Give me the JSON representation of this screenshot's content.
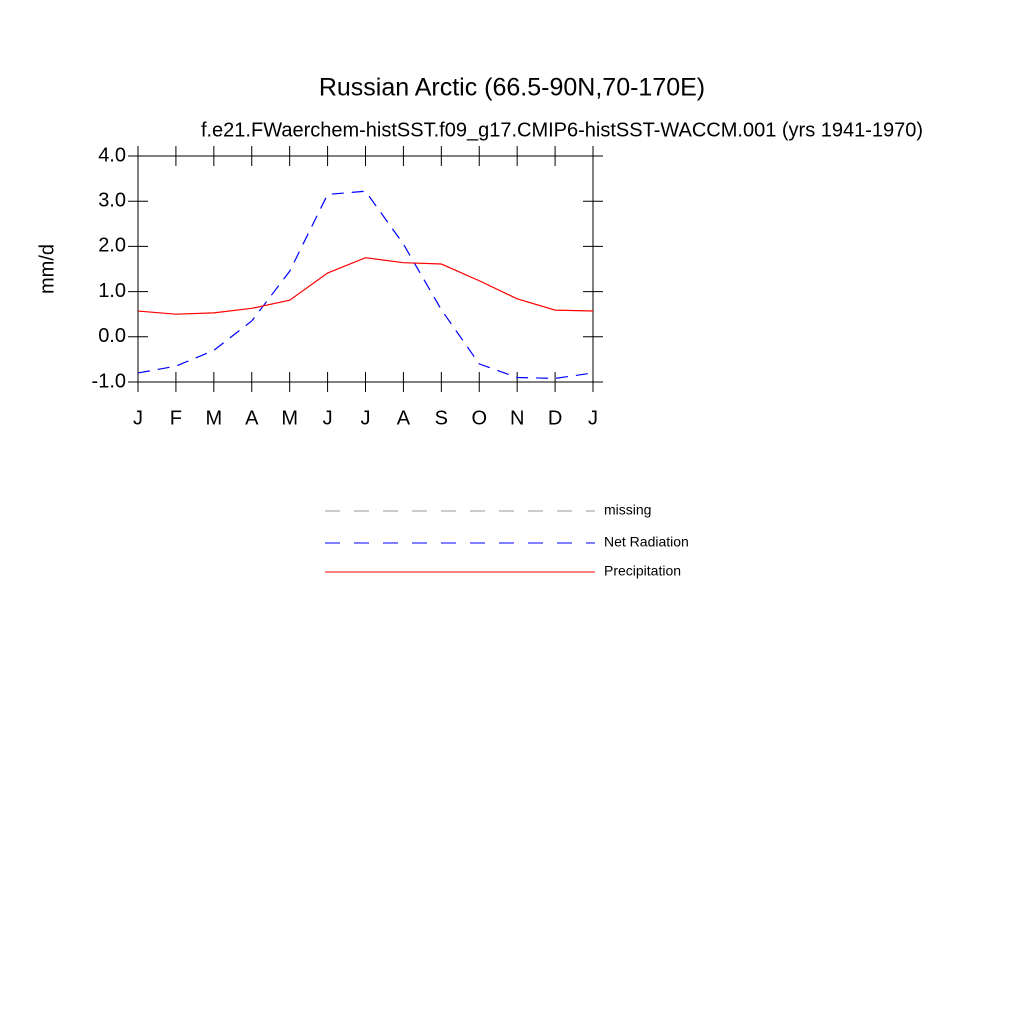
{
  "chart_data": {
    "type": "line",
    "title": "Russian Arctic (66.5-90N,70-170E)",
    "subtitle": "f.e21.FWaerchem-histSST.f09_g17.CMIP6-histSST-WACCM.001 (yrs 1941-1970)",
    "y_label": "mm/d",
    "categories": [
      "J",
      "F",
      "M",
      "A",
      "M",
      "J",
      "J",
      "A",
      "S",
      "O",
      "N",
      "D",
      "J"
    ],
    "series": [
      {
        "name": "missing",
        "color": "#999999",
        "dash": true,
        "values": [
          null,
          null,
          null,
          null,
          null,
          null,
          null,
          null,
          null,
          null,
          null,
          null,
          null
        ]
      },
      {
        "name": "Net Radiation",
        "color": "#0000ff",
        "dash": true,
        "values": [
          -0.8,
          -0.65,
          -0.3,
          0.35,
          1.45,
          3.15,
          3.22,
          2.05,
          0.6,
          -0.6,
          -0.9,
          -0.92,
          -0.8
        ]
      },
      {
        "name": "Precipitation",
        "color": "#ff0000",
        "dash": false,
        "values": [
          0.57,
          0.5,
          0.53,
          0.63,
          0.81,
          1.41,
          1.75,
          1.64,
          1.61,
          1.24,
          0.84,
          0.59,
          0.57
        ]
      }
    ],
    "ylim": [
      -1.0,
      4.0
    ],
    "yticks": [
      {
        "value": -1.0,
        "label": "-1.0"
      },
      {
        "value": 0.0,
        "label": "0.0"
      },
      {
        "value": 1.0,
        "label": "1.0"
      },
      {
        "value": 2.0,
        "label": "2.0"
      },
      {
        "value": 3.0,
        "label": "3.0"
      },
      {
        "value": 4.0,
        "label": "4.0"
      }
    ]
  }
}
